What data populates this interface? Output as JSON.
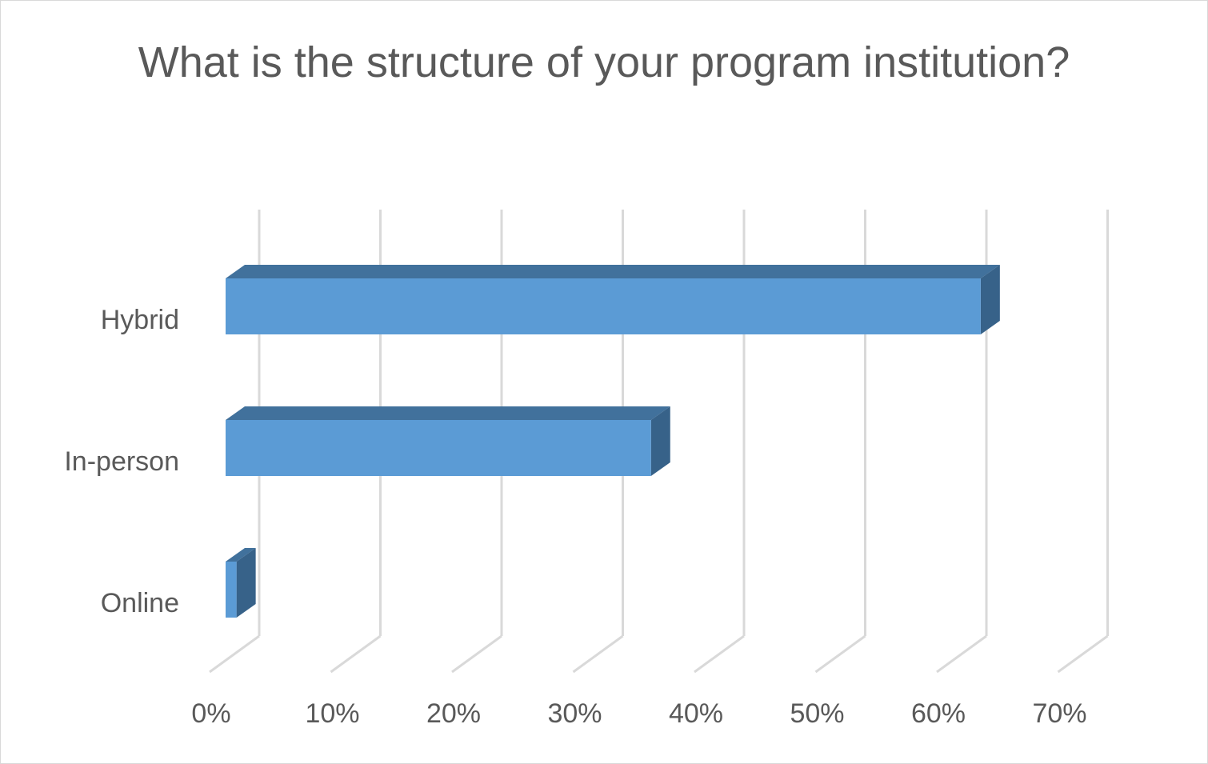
{
  "chart_data": {
    "type": "bar",
    "orientation": "horizontal",
    "style": "3d",
    "title": "What is the structure of your program institution?",
    "categories": [
      "Hybrid",
      "In-person",
      "Online"
    ],
    "values": [
      62.3,
      35.1,
      0.9
    ],
    "unit": "%",
    "xlim": [
      0,
      70
    ],
    "xticks": [
      0,
      10,
      20,
      30,
      40,
      50,
      60,
      70
    ],
    "tick_labels": [
      "0%",
      "10%",
      "20%",
      "30%",
      "40%",
      "50%",
      "60%",
      "70%"
    ],
    "grid": true,
    "legend": "none",
    "colors": {
      "bar_front": "#5b9bd5",
      "bar_top": "#41719c",
      "bar_side": "#376289",
      "grid": "#d9d9d9",
      "text": "#595959"
    }
  }
}
